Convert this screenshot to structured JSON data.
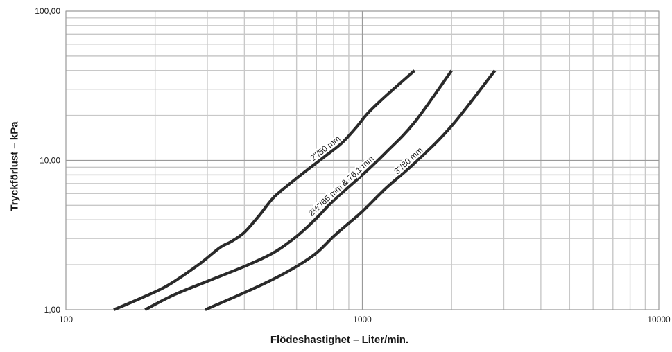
{
  "chart_data": {
    "type": "line",
    "title": "",
    "xlabel": "Flödeshastighet – Liter/min.",
    "ylabel": "Tryckförlust – kPa",
    "x_scale": "log",
    "y_scale": "log",
    "xlim": [
      100,
      10000
    ],
    "ylim": [
      1,
      100
    ],
    "x_ticks": [
      {
        "value": 100,
        "label": "100"
      },
      {
        "value": 1000,
        "label": "1000"
      },
      {
        "value": 10000,
        "label": "10000"
      }
    ],
    "y_ticks": [
      {
        "value": 1,
        "label": "1,00"
      },
      {
        "value": 10,
        "label": "10,00"
      },
      {
        "value": 100,
        "label": "100,00"
      }
    ],
    "grid": true,
    "series": [
      {
        "name": "2\"/50 mm",
        "color": "#2a2a2a",
        "points": [
          [
            145,
            1.0
          ],
          [
            180,
            1.2
          ],
          [
            220,
            1.45
          ],
          [
            280,
            2.0
          ],
          [
            330,
            2.6
          ],
          [
            360,
            2.85
          ],
          [
            400,
            3.3
          ],
          [
            450,
            4.3
          ],
          [
            500,
            5.6
          ],
          [
            560,
            6.8
          ],
          [
            650,
            8.6
          ],
          [
            750,
            10.7
          ],
          [
            850,
            13.0
          ],
          [
            950,
            16.5
          ],
          [
            1050,
            21.0
          ],
          [
            1200,
            27.0
          ],
          [
            1500,
            40.0
          ]
        ]
      },
      {
        "name": "2½\"/65 mm & 76,1 mm",
        "color": "#2a2a2a",
        "points": [
          [
            185,
            1.0
          ],
          [
            230,
            1.25
          ],
          [
            300,
            1.55
          ],
          [
            400,
            1.95
          ],
          [
            500,
            2.4
          ],
          [
            600,
            3.1
          ],
          [
            700,
            4.1
          ],
          [
            800,
            5.4
          ],
          [
            1000,
            8.0
          ],
          [
            1200,
            11.3
          ],
          [
            1500,
            18.0
          ],
          [
            2000,
            40.0
          ]
        ]
      },
      {
        "name": "3\"/80 mm",
        "color": "#2a2a2a",
        "points": [
          [
            295,
            1.0
          ],
          [
            400,
            1.3
          ],
          [
            500,
            1.6
          ],
          [
            600,
            1.95
          ],
          [
            700,
            2.4
          ],
          [
            800,
            3.1
          ],
          [
            900,
            3.8
          ],
          [
            1000,
            4.55
          ],
          [
            1200,
            6.5
          ],
          [
            1500,
            9.6
          ],
          [
            2000,
            17.0
          ],
          [
            2800,
            40.0
          ]
        ]
      }
    ]
  }
}
